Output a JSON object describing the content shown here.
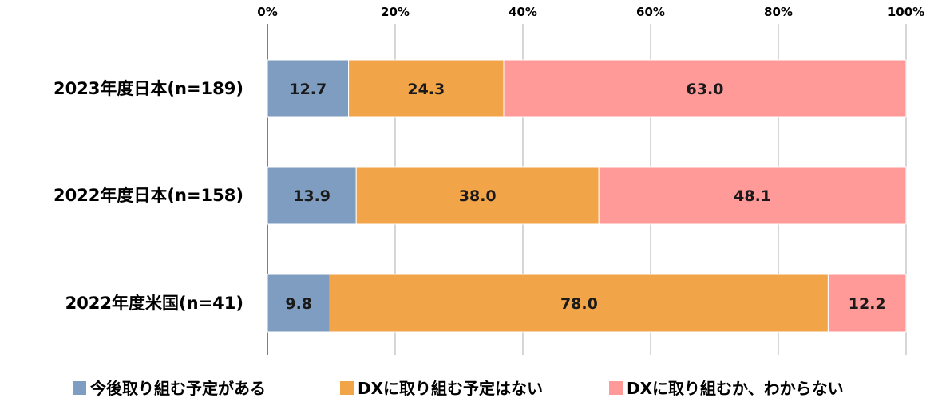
{
  "chart_data": {
    "type": "bar",
    "orientation": "horizontal",
    "stacked": true,
    "categories": [
      "2023年度日本(n=189)",
      "2022年度日本(n=158)",
      "2022年度米国(n=41)"
    ],
    "series": [
      {
        "name": "今後取り組む予定がある",
        "color": "#7f9cc1",
        "values": [
          12.7,
          13.9,
          9.8
        ]
      },
      {
        "name": "DXに取り組む予定はない",
        "color": "#f2a448",
        "values": [
          24.3,
          38.0,
          78.0
        ]
      },
      {
        "name": "DXに取り組むか、わからない",
        "color": "#ff9a99",
        "values": [
          63.0,
          48.1,
          12.2
        ]
      }
    ],
    "xlim": [
      0,
      100
    ],
    "x_ticks": [
      "0%",
      "20%",
      "40%",
      "60%",
      "80%",
      "100%"
    ],
    "x_axis_position": "top",
    "grid": true,
    "legend_position": "bottom"
  }
}
